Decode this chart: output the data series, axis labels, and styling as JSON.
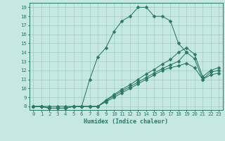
{
  "title": "",
  "xlabel": "Humidex (Indice chaleur)",
  "bg_color": "#c5e8e2",
  "line_color": "#2a7a65",
  "xlim": [
    -0.5,
    23.5
  ],
  "ylim": [
    7.6,
    19.5
  ],
  "xticks": [
    0,
    1,
    2,
    3,
    4,
    5,
    6,
    7,
    8,
    9,
    10,
    11,
    12,
    13,
    14,
    15,
    16,
    17,
    18,
    19,
    20,
    21,
    22,
    23
  ],
  "yticks": [
    8,
    9,
    10,
    11,
    12,
    13,
    14,
    15,
    16,
    17,
    18,
    19
  ],
  "series": [
    {
      "x": [
        0,
        1,
        2,
        3,
        4,
        5,
        6,
        7,
        8,
        9,
        10,
        11,
        12,
        13,
        14,
        15,
        16,
        17,
        18,
        19
      ],
      "y": [
        8,
        8,
        8,
        8,
        8,
        8,
        8,
        11,
        13.5,
        14.5,
        16.3,
        17.5,
        18.0,
        19.0,
        19.0,
        18.0,
        18.0,
        17.5,
        15.0,
        14.0
      ]
    },
    {
      "x": [
        0,
        1,
        2,
        3,
        4,
        5,
        6,
        7,
        8,
        9,
        10,
        11,
        12,
        13,
        14,
        15,
        16,
        17,
        18,
        19,
        20,
        21,
        22,
        23
      ],
      "y": [
        8,
        8,
        7.8,
        7.8,
        7.8,
        8.0,
        8.0,
        8.0,
        8.0,
        8.5,
        9.0,
        9.5,
        10.0,
        10.5,
        11.0,
        11.5,
        12.0,
        12.3,
        12.5,
        12.8,
        12.3,
        11.0,
        11.5,
        11.7
      ]
    },
    {
      "x": [
        0,
        1,
        2,
        3,
        4,
        5,
        6,
        7,
        8,
        9,
        10,
        11,
        12,
        13,
        14,
        15,
        16,
        17,
        18,
        19,
        20,
        21,
        22,
        23
      ],
      "y": [
        8,
        8,
        7.8,
        7.8,
        7.8,
        8.0,
        8.0,
        8.0,
        8.0,
        8.6,
        9.2,
        9.7,
        10.2,
        10.7,
        11.2,
        11.7,
        12.2,
        12.6,
        13.0,
        14.0,
        13.3,
        11.0,
        11.8,
        12.0
      ]
    },
    {
      "x": [
        0,
        1,
        2,
        3,
        4,
        5,
        6,
        7,
        8,
        9,
        10,
        11,
        12,
        13,
        14,
        15,
        16,
        17,
        18,
        19,
        20,
        21,
        22,
        23
      ],
      "y": [
        8,
        8,
        7.8,
        7.8,
        7.8,
        8.0,
        8.0,
        8.0,
        8.0,
        8.7,
        9.3,
        9.9,
        10.4,
        11.0,
        11.6,
        12.1,
        12.7,
        13.2,
        14.0,
        14.5,
        13.8,
        11.3,
        12.0,
        12.3
      ]
    }
  ],
  "grid_color": "#9dcdc4",
  "font_color": "#2a7a65",
  "tick_fontsize": 5.2,
  "xlabel_fontsize": 6.0,
  "lw": 0.75,
  "markersize": 2.5
}
